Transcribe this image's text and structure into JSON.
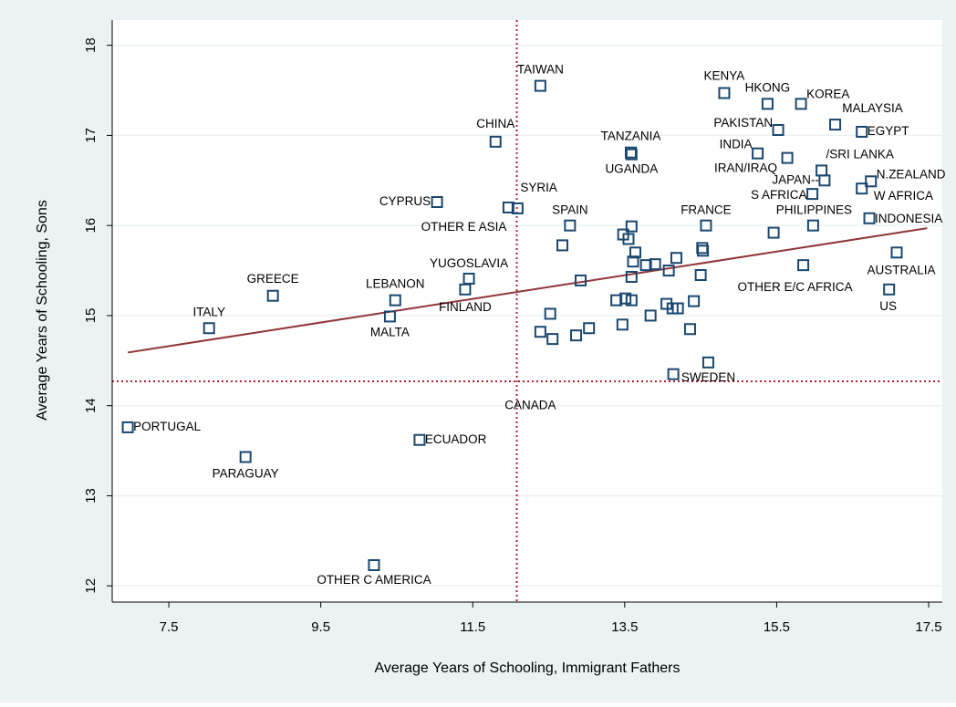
{
  "chart_data": {
    "type": "scatter",
    "x_label": "Average Years of Schooling, Immigrant Fathers",
    "y_label": "Average Years of Schooling, Sons",
    "labels": [
      "PORTUGAL",
      "PARAGUAY",
      "ECUADOR",
      "OTHER C AMERICA",
      "ITALY",
      "GREECE",
      "LEBANON",
      "MALTA",
      "YUGOSLAVIA",
      "FINLAND",
      "CYPRUS",
      "CHINA",
      "TAIWAN",
      "SYRIA",
      "OTHER E ASIA",
      "SPAIN",
      "CANADA",
      "TANZANIA",
      "UGANDA",
      "KENYA",
      "HKONG",
      "KOREA",
      "MALAYSIA",
      "EGYPT",
      "PAKISTAN",
      "INDIA",
      "IRAN/IRAQ",
      "/SRI LANKA",
      "JAPAN--",
      "N.ZEALAND",
      "W AFRICA",
      "S AFRICA",
      "PHILIPPINES",
      "INDONESIA",
      "FRANCE",
      "AUSTRALIA",
      "OTHER E/C AFRICA",
      "US",
      "SWEDEN",
      null,
      null,
      null,
      null,
      null,
      null,
      null,
      null,
      null,
      null,
      null,
      null,
      null,
      null,
      null,
      null,
      null,
      null,
      null,
      null,
      null,
      null,
      null,
      null,
      null,
      null,
      null,
      null,
      null,
      null
    ],
    "x": [
      6.96,
      8.51,
      10.8,
      10.2,
      8.03,
      8.87,
      10.48,
      10.41,
      11.45,
      11.4,
      11.03,
      11.8,
      12.39,
      12.09,
      11.97,
      12.78,
      12.39,
      13.58,
      13.59,
      14.81,
      15.38,
      15.82,
      16.27,
      16.62,
      15.52,
      15.25,
      15.64,
      16.09,
      16.13,
      16.74,
      16.62,
      15.97,
      15.98,
      16.72,
      14.57,
      17.08,
      15.85,
      16.98,
      14.6,
      12.68,
      13.48,
      13.55,
      13.59,
      13.64,
      13.61,
      13.78,
      13.9,
      14.18,
      14.08,
      14.52,
      14.53,
      14.5,
      13.59,
      12.92,
      13.39,
      13.51,
      13.59,
      13.84,
      14.05,
      14.13,
      14.2,
      14.41,
      13.47,
      13.03,
      12.86,
      12.55,
      12.52,
      14.14,
      14.36,
      15.46
    ],
    "y": [
      13.76,
      13.43,
      13.62,
      12.23,
      14.86,
      15.22,
      15.17,
      14.99,
      15.41,
      15.29,
      16.26,
      16.93,
      17.55,
      16.19,
      16.2,
      16.0,
      14.82,
      16.81,
      16.79,
      17.47,
      17.35,
      17.35,
      17.12,
      17.04,
      17.06,
      16.8,
      16.75,
      16.61,
      16.5,
      16.49,
      16.41,
      16.35,
      16.0,
      16.08,
      16.0,
      15.7,
      15.56,
      15.29,
      14.48,
      15.78,
      15.9,
      15.85,
      15.99,
      15.7,
      15.6,
      15.56,
      15.57,
      15.64,
      15.5,
      15.75,
      15.72,
      15.45,
      15.43,
      15.39,
      15.17,
      15.19,
      15.17,
      15.0,
      15.13,
      15.08,
      15.08,
      15.16,
      14.9,
      14.86,
      14.78,
      14.74,
      15.02,
      14.35,
      14.85,
      15.92
    ],
    "color": "#1a476f",
    "fit_line": {
      "x": [
        6.96,
        17.48
      ],
      "y": [
        14.59,
        15.97
      ],
      "color": "#90353b"
    },
    "mean_x": 12.08,
    "mean_y": 14.27,
    "ref_color": "#b22234",
    "xlim": [
      6.755,
      17.68
    ],
    "ylim": [
      11.82,
      18.28
    ],
    "xticks": [
      7.5,
      9.5,
      11.5,
      13.5,
      15.5,
      17.5
    ],
    "yticks": [
      12,
      13,
      14,
      15,
      16,
      17,
      18
    ],
    "grid": true
  }
}
